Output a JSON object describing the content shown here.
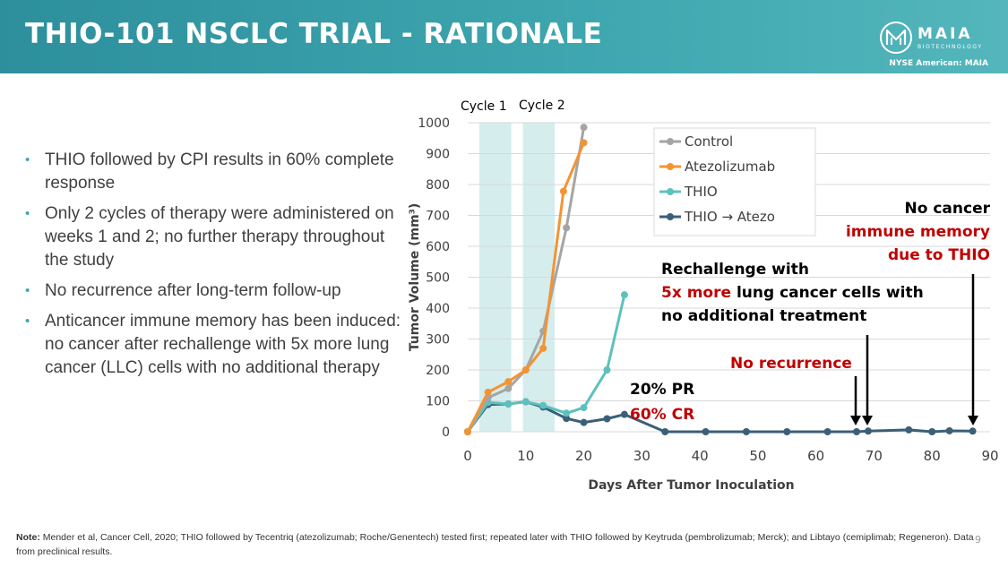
{
  "header": {
    "title": "THIO-101 NSCLC TRIAL - RATIONALE",
    "logo_name": "MAIA",
    "logo_sub": "BIOTECHNOLOGY",
    "exchange": "NYSE American: MAIA"
  },
  "bullets": [
    "THIO followed by CPI results in 60% complete response",
    "Only 2 cycles of therapy were administered on weeks 1 and 2; no further therapy throughout the study",
    "No recurrence after long-term follow-up",
    "Anticancer immune memory has been induced: no cancer after rechallenge with 5x more lung cancer (LLC) cells with no additional therapy"
  ],
  "note": {
    "label": "Note:",
    "text": " Mender et al, Cancer Cell, 2020; THIO followed by Tecentriq (atezolizumab; Roche/Genentech) tested first; repeated later with THIO followed by Keytruda (pembrolizumab; Merck); and Libtayo (cemiplimab; Regeneron). Data from preclinical results."
  },
  "page_number": "9",
  "annotations": {
    "cycle1": "Cycle 1",
    "cycle2": "Cycle 2",
    "pr": "20% PR",
    "cr": "60% CR",
    "no_recurrence": "No recurrence",
    "rechallenge_line1": "Rechallenge with",
    "rechallenge_red": "5x more",
    "rechallenge_line2_rest": " lung cancer cells with",
    "rechallenge_line3": "no additional treatment",
    "no_cancer": "No cancer",
    "immune_memory": "immune memory",
    "due_to_thio": "due to THIO"
  },
  "colors": {
    "header": "#3fa7b0",
    "control": "#a5a5a5",
    "atezo": "#f39433",
    "thio": "#5cc1bd",
    "thio_atezo": "#3b5f77",
    "cycle_band": "#d5eded",
    "red": "#c00000"
  },
  "chart_data": {
    "type": "line",
    "xlabel": "Days After Tumor Inoculation",
    "ylabel": "Tumor Volume (mm³)",
    "xlim": [
      0,
      90
    ],
    "ylim": [
      0,
      1000
    ],
    "xticks": [
      0,
      10,
      20,
      30,
      40,
      50,
      60,
      70,
      80,
      90
    ],
    "yticks": [
      0,
      100,
      200,
      300,
      400,
      500,
      600,
      700,
      800,
      900,
      1000
    ],
    "grid": "horizontal",
    "legend_position": "top-middle",
    "cycle_bands": [
      [
        2,
        7.5
      ],
      [
        9.5,
        15
      ]
    ],
    "series": [
      {
        "name": "Control",
        "color": "#a5a5a5",
        "x": [
          0,
          3.5,
          7,
          10,
          13,
          17,
          20
        ],
        "y": [
          0,
          110,
          140,
          200,
          325,
          660,
          985
        ]
      },
      {
        "name": "Atezolizumab",
        "color": "#f39433",
        "x": [
          0,
          3.5,
          7,
          10,
          13,
          16.5,
          20
        ],
        "y": [
          0,
          128,
          162,
          200,
          270,
          778,
          935
        ]
      },
      {
        "name": "THIO",
        "color": "#5cc1bd",
        "x": [
          0,
          3.5,
          7,
          10,
          13,
          17,
          20,
          24,
          27
        ],
        "y": [
          0,
          95,
          90,
          97,
          85,
          60,
          78,
          200,
          443
        ]
      },
      {
        "name": "THIO → Atezo",
        "color": "#3b5f77",
        "x": [
          0,
          3.5,
          7,
          10,
          13,
          17,
          20,
          24,
          27,
          34,
          41,
          48,
          55,
          62,
          67,
          69,
          76,
          80,
          83,
          87
        ],
        "y": [
          0,
          88,
          90,
          97,
          80,
          43,
          30,
          42,
          56,
          0,
          0,
          0,
          0,
          0,
          0,
          2,
          6,
          0,
          3,
          2
        ]
      }
    ]
  }
}
